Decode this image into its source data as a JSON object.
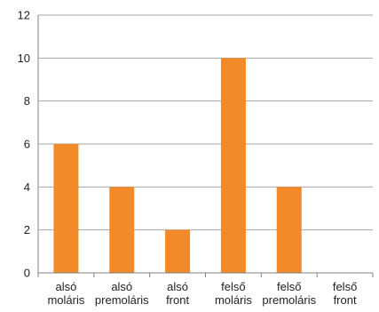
{
  "chart_data": {
    "type": "bar",
    "categories": [
      [
        "alsó",
        "moláris"
      ],
      [
        "alsó",
        "premoláris"
      ],
      [
        "alsó",
        "front"
      ],
      [
        "felső",
        "moláris"
      ],
      [
        "felső",
        "premoláris"
      ],
      [
        "felső",
        "front"
      ]
    ],
    "values": [
      6,
      4,
      2,
      10,
      4,
      0
    ],
    "yticks": [
      "0",
      "2",
      "4",
      "6",
      "8",
      "10",
      "12"
    ],
    "ylim": [
      0,
      12
    ],
    "grid": true,
    "bar_color": "#F28A2A",
    "grid_color": "#A6A6A6",
    "axis_color": "#7F7F7F"
  }
}
